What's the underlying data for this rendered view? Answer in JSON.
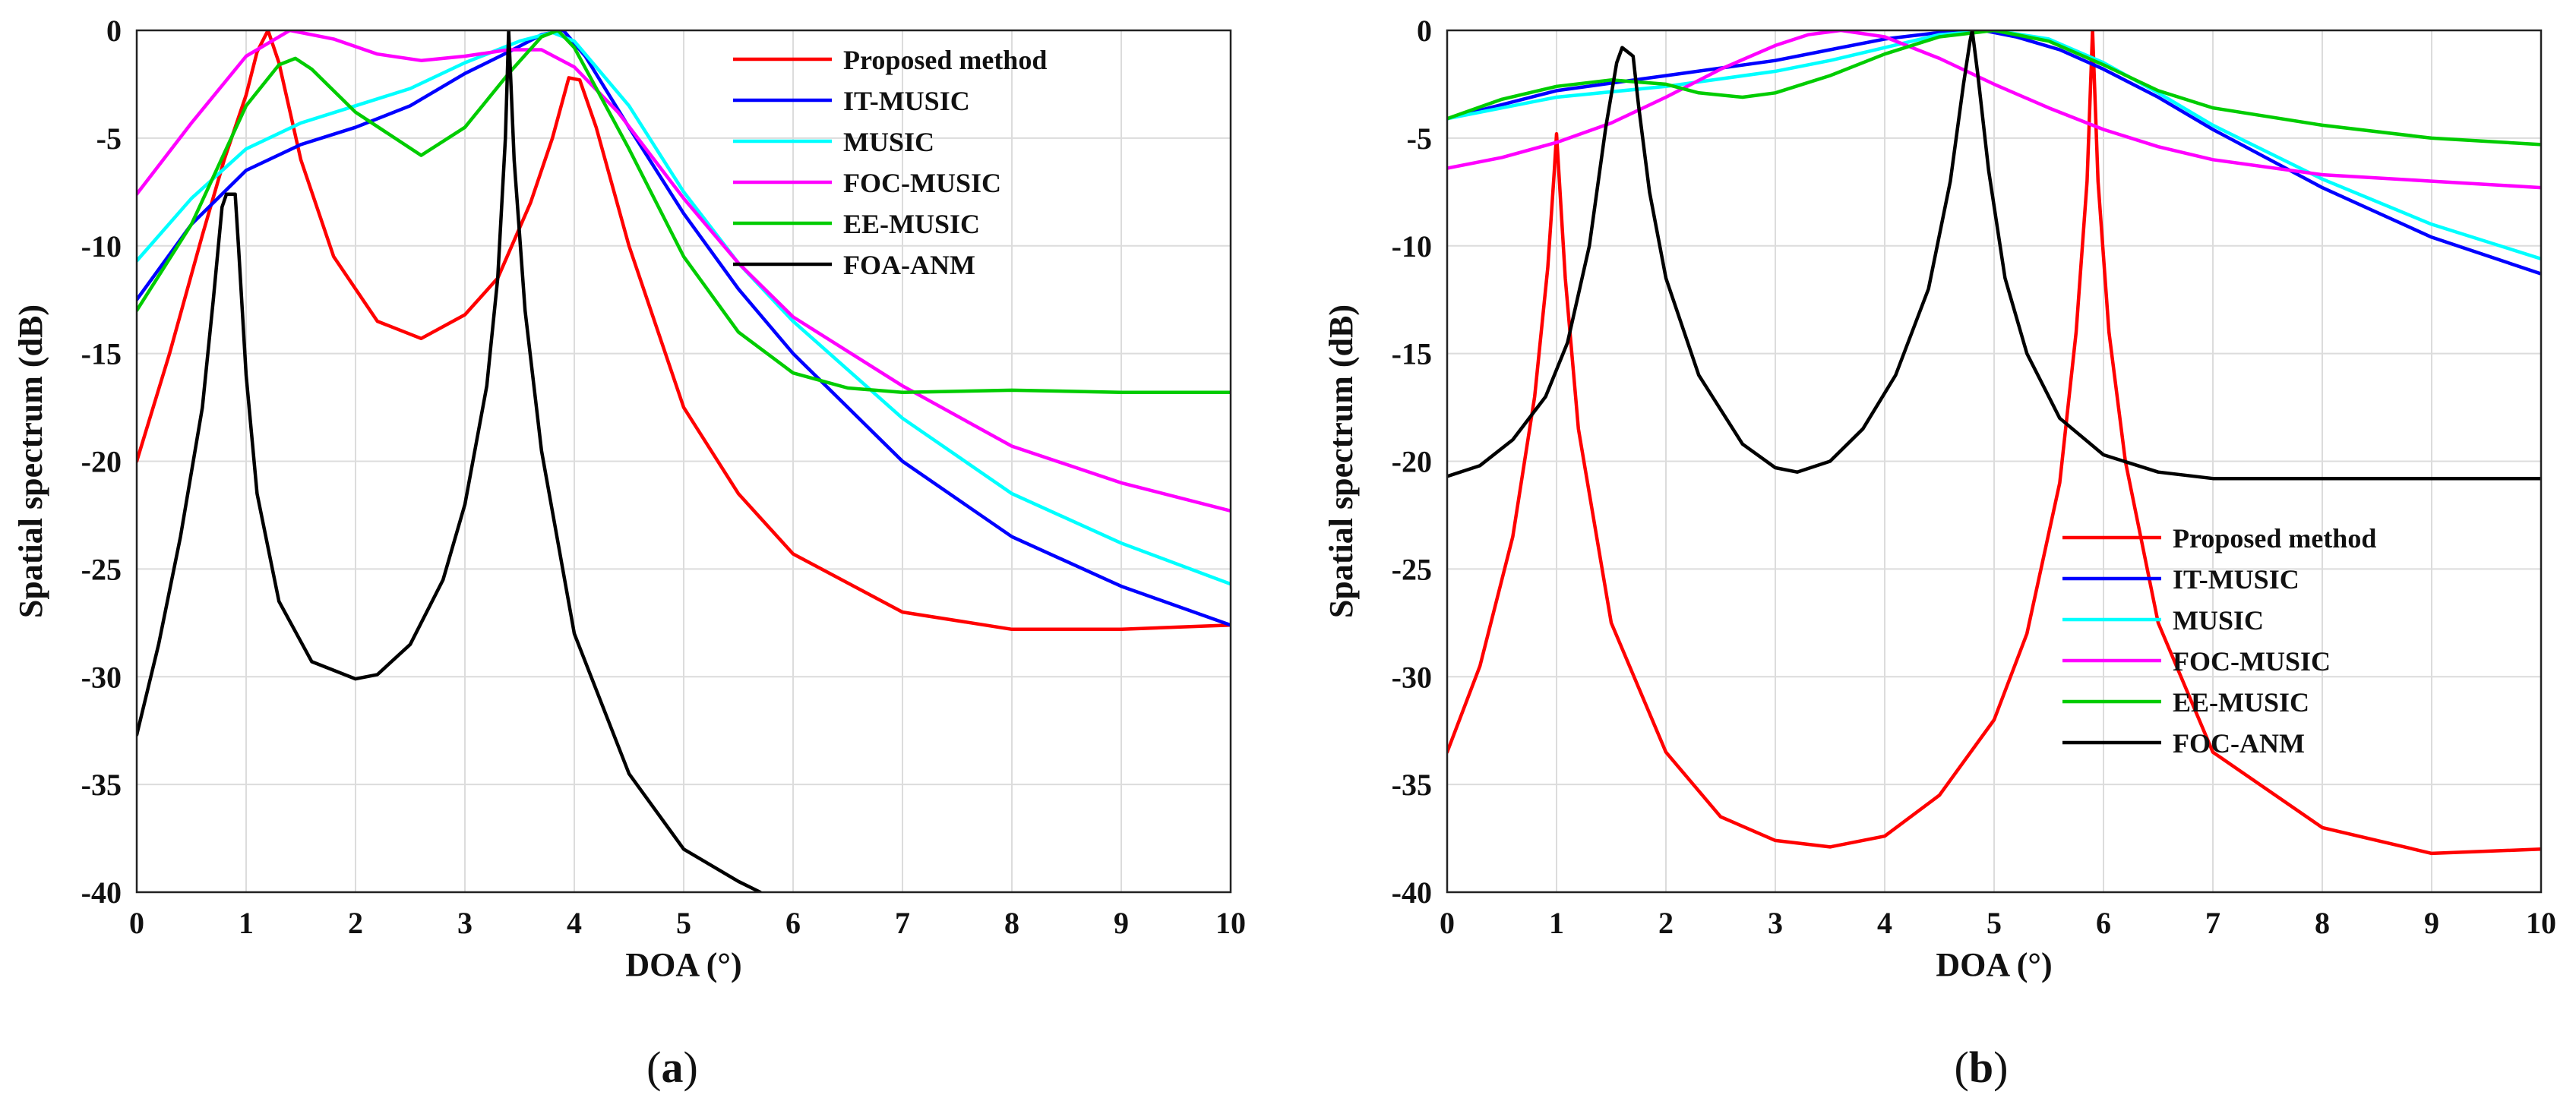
{
  "chart_data": [
    {
      "type": "line",
      "panel": "a",
      "panel_label": "a",
      "xlabel": "DOA (°)",
      "ylabel": "Spatial spectrum (dB)",
      "xlim": [
        0,
        10
      ],
      "ylim": [
        -40,
        0
      ],
      "xticks": [
        0,
        1,
        2,
        3,
        4,
        5,
        6,
        7,
        8,
        9,
        10
      ],
      "yticks": [
        0,
        -5,
        -10,
        -15,
        -20,
        -25,
        -30,
        -35,
        -40
      ],
      "grid": true,
      "legend_position": "top-right",
      "series": [
        {
          "name": "Proposed method",
          "color": "#ff0000",
          "x": [
            0,
            0.3,
            0.6,
            0.8,
            1.0,
            1.1,
            1.2,
            1.3,
            1.5,
            1.8,
            2.2,
            2.6,
            3.0,
            3.3,
            3.6,
            3.8,
            3.95,
            4.05,
            4.2,
            4.5,
            5.0,
            5.5,
            6.0,
            7.0,
            8.0,
            9.0,
            10.0
          ],
          "y": [
            -20,
            -15,
            -9.5,
            -6,
            -3,
            -1,
            0,
            -1.5,
            -6,
            -10.5,
            -13.5,
            -14.3,
            -13.2,
            -11.5,
            -8,
            -5,
            -2.2,
            -2.3,
            -4.5,
            -10,
            -17.5,
            -21.5,
            -24.3,
            -27,
            -27.8,
            -27.8,
            -27.6
          ]
        },
        {
          "name": "IT-MUSIC",
          "color": "#0000ff",
          "x": [
            0,
            0.5,
            1.0,
            1.5,
            2.0,
            2.5,
            3.0,
            3.4,
            3.7,
            3.9,
            4.1,
            4.5,
            5.0,
            5.5,
            6.0,
            7.0,
            8.0,
            9.0,
            10.0
          ],
          "y": [
            -12.5,
            -9,
            -6.5,
            -5.3,
            -4.5,
            -3.5,
            -2,
            -1,
            -0.2,
            0,
            -1.2,
            -4.5,
            -8.5,
            -12,
            -15,
            -20,
            -23.5,
            -25.8,
            -27.6
          ]
        },
        {
          "name": "MUSIC",
          "color": "#00ffff",
          "x": [
            0,
            0.5,
            1.0,
            1.5,
            2.0,
            2.5,
            3.0,
            3.5,
            3.8,
            4.0,
            4.5,
            5.0,
            5.5,
            6.0,
            7.0,
            8.0,
            9.0,
            10.0
          ],
          "y": [
            -10.7,
            -7.8,
            -5.5,
            -4.3,
            -3.5,
            -2.7,
            -1.5,
            -0.5,
            -0.1,
            -0.5,
            -3.5,
            -7.5,
            -10.8,
            -13.5,
            -18,
            -21.5,
            -23.8,
            -25.7
          ]
        },
        {
          "name": "FOC-MUSIC",
          "color": "#ff00ff",
          "x": [
            0,
            0.5,
            1.0,
            1.4,
            1.8,
            2.2,
            2.6,
            3.0,
            3.4,
            3.7,
            4.0,
            4.4,
            5.0,
            5.5,
            6.0,
            7.0,
            8.0,
            9.0,
            10.0
          ],
          "y": [
            -7.6,
            -4.3,
            -1.2,
            0,
            -0.4,
            -1.1,
            -1.4,
            -1.2,
            -0.9,
            -0.9,
            -1.7,
            -3.8,
            -7.8,
            -10.8,
            -13.3,
            -16.5,
            -19.3,
            -21,
            -22.3
          ]
        },
        {
          "name": "EE-MUSIC",
          "color": "#00cc00",
          "x": [
            0,
            0.5,
            1.0,
            1.3,
            1.45,
            1.6,
            2.0,
            2.6,
            3.0,
            3.4,
            3.7,
            3.85,
            4.0,
            4.5,
            5.0,
            5.5,
            6.0,
            6.5,
            7.0,
            8.0,
            9.0,
            10.0
          ],
          "y": [
            -13,
            -9,
            -3.5,
            -1.6,
            -1.3,
            -1.8,
            -3.8,
            -5.8,
            -4.5,
            -2,
            -0.3,
            0,
            -0.8,
            -5.5,
            -10.5,
            -14,
            -15.9,
            -16.6,
            -16.8,
            -16.7,
            -16.8,
            -16.8
          ]
        },
        {
          "name": "FOA-ANM",
          "color": "#000000",
          "x": [
            0,
            0.2,
            0.4,
            0.6,
            0.7,
            0.78,
            0.82,
            0.9,
            0.93,
            1.0,
            1.1,
            1.3,
            1.6,
            2.0,
            2.2,
            2.5,
            2.8,
            3.0,
            3.2,
            3.3,
            3.37,
            3.4,
            3.45,
            3.55,
            3.7,
            4.0,
            4.5,
            5.0,
            5.5,
            5.7
          ],
          "y": [
            -32.7,
            -28.5,
            -23.5,
            -17.5,
            -12.5,
            -8.2,
            -7.6,
            -7.6,
            -10,
            -16,
            -21.5,
            -26.5,
            -29.3,
            -30.1,
            -29.9,
            -28.5,
            -25.5,
            -22,
            -16.5,
            -11.5,
            -5,
            0,
            -6,
            -13,
            -19.5,
            -28,
            -34.5,
            -38,
            -39.5,
            -40
          ]
        }
      ]
    },
    {
      "type": "line",
      "panel": "b",
      "panel_label": "b",
      "xlabel": "DOA (°)",
      "ylabel": "Spatial spectrum (dB)",
      "xlim": [
        0,
        10
      ],
      "ylim": [
        -40,
        0
      ],
      "xticks": [
        0,
        1,
        2,
        3,
        4,
        5,
        6,
        7,
        8,
        9,
        10
      ],
      "yticks": [
        0,
        -5,
        -10,
        -15,
        -20,
        -25,
        -30,
        -35,
        -40
      ],
      "grid": true,
      "legend_position": "middle-right",
      "series": [
        {
          "name": "Proposed method",
          "color": "#ff0000",
          "x": [
            0,
            0.3,
            0.6,
            0.8,
            0.92,
            0.98,
            1.0,
            1.02,
            1.08,
            1.2,
            1.5,
            2.0,
            2.5,
            3.0,
            3.5,
            4.0,
            4.5,
            5.0,
            5.3,
            5.6,
            5.75,
            5.85,
            5.9,
            5.95,
            6.05,
            6.2,
            6.5,
            7.0,
            8.0,
            9.0,
            10.0
          ],
          "y": [
            -33.5,
            -29.5,
            -23.5,
            -17,
            -11,
            -6.5,
            -4.8,
            -6.5,
            -11.5,
            -18.5,
            -27.5,
            -33.5,
            -36.5,
            -37.6,
            -37.9,
            -37.4,
            -35.5,
            -32,
            -28,
            -21,
            -14,
            -7,
            0,
            -7,
            -14,
            -20,
            -27.5,
            -33.5,
            -37,
            -38.2,
            -38
          ]
        },
        {
          "name": "IT-MUSIC",
          "color": "#0000ff",
          "x": [
            0,
            1.0,
            2.0,
            3.0,
            3.5,
            4.0,
            4.5,
            4.9,
            5.2,
            5.6,
            6.0,
            6.5,
            7.0,
            8.0,
            9.0,
            10.0
          ],
          "y": [
            -4.1,
            -2.8,
            -2.1,
            -1.4,
            -0.9,
            -0.4,
            -0.1,
            0,
            -0.3,
            -0.9,
            -1.8,
            -3.1,
            -4.6,
            -7.3,
            -9.6,
            -11.3
          ]
        },
        {
          "name": "MUSIC",
          "color": "#00ffff",
          "x": [
            0,
            1.0,
            2.0,
            3.0,
            3.5,
            4.0,
            4.5,
            5.0,
            5.5,
            6.0,
            6.5,
            7.0,
            8.0,
            9.0,
            10.0
          ],
          "y": [
            -4.1,
            -3.1,
            -2.6,
            -1.9,
            -1.4,
            -0.8,
            -0.2,
            0,
            -0.4,
            -1.5,
            -2.9,
            -4.4,
            -6.9,
            -9,
            -10.6
          ]
        },
        {
          "name": "FOC-MUSIC",
          "color": "#ff00ff",
          "x": [
            0,
            0.5,
            1.0,
            1.5,
            2.0,
            2.5,
            3.0,
            3.3,
            3.6,
            4.0,
            4.5,
            5.0,
            5.5,
            6.0,
            6.5,
            7.0,
            8.0,
            9.0,
            10.0
          ],
          "y": [
            -6.4,
            -5.9,
            -5.2,
            -4.3,
            -3.1,
            -1.8,
            -0.7,
            -0.2,
            0,
            -0.3,
            -1.3,
            -2.5,
            -3.6,
            -4.6,
            -5.4,
            -6,
            -6.7,
            -7,
            -7.3
          ]
        },
        {
          "name": "EE-MUSIC",
          "color": "#00cc00",
          "x": [
            0,
            0.5,
            1.0,
            1.5,
            2.0,
            2.3,
            2.7,
            3.0,
            3.5,
            4.0,
            4.5,
            5.0,
            5.5,
            6.0,
            6.5,
            7.0,
            8.0,
            9.0,
            10.0
          ],
          "y": [
            -4.1,
            -3.2,
            -2.6,
            -2.3,
            -2.5,
            -2.9,
            -3.1,
            -2.9,
            -2.1,
            -1.1,
            -0.3,
            0,
            -0.5,
            -1.6,
            -2.8,
            -3.6,
            -4.4,
            -5,
            -5.3
          ]
        },
        {
          "name": "FOC-ANM",
          "color": "#000000",
          "x": [
            0,
            0.3,
            0.6,
            0.9,
            1.1,
            1.3,
            1.45,
            1.55,
            1.6,
            1.7,
            1.75,
            1.85,
            2.0,
            2.3,
            2.7,
            3.0,
            3.2,
            3.5,
            3.8,
            4.1,
            4.4,
            4.6,
            4.72,
            4.78,
            4.8,
            4.85,
            4.95,
            5.1,
            5.3,
            5.6,
            6.0,
            6.5,
            7.0,
            8.0,
            9.0,
            10.0
          ],
          "y": [
            -20.7,
            -20.2,
            -19,
            -17,
            -14.5,
            -10,
            -4.5,
            -1.5,
            -0.8,
            -1.2,
            -3.5,
            -7.5,
            -11.5,
            -16,
            -19.2,
            -20.3,
            -20.5,
            -20,
            -18.5,
            -16,
            -12,
            -7,
            -2.5,
            -0.5,
            0,
            -2,
            -6.5,
            -11.5,
            -15,
            -18,
            -19.7,
            -20.5,
            -20.8,
            -20.8,
            -20.8,
            -20.8
          ]
        }
      ]
    }
  ]
}
